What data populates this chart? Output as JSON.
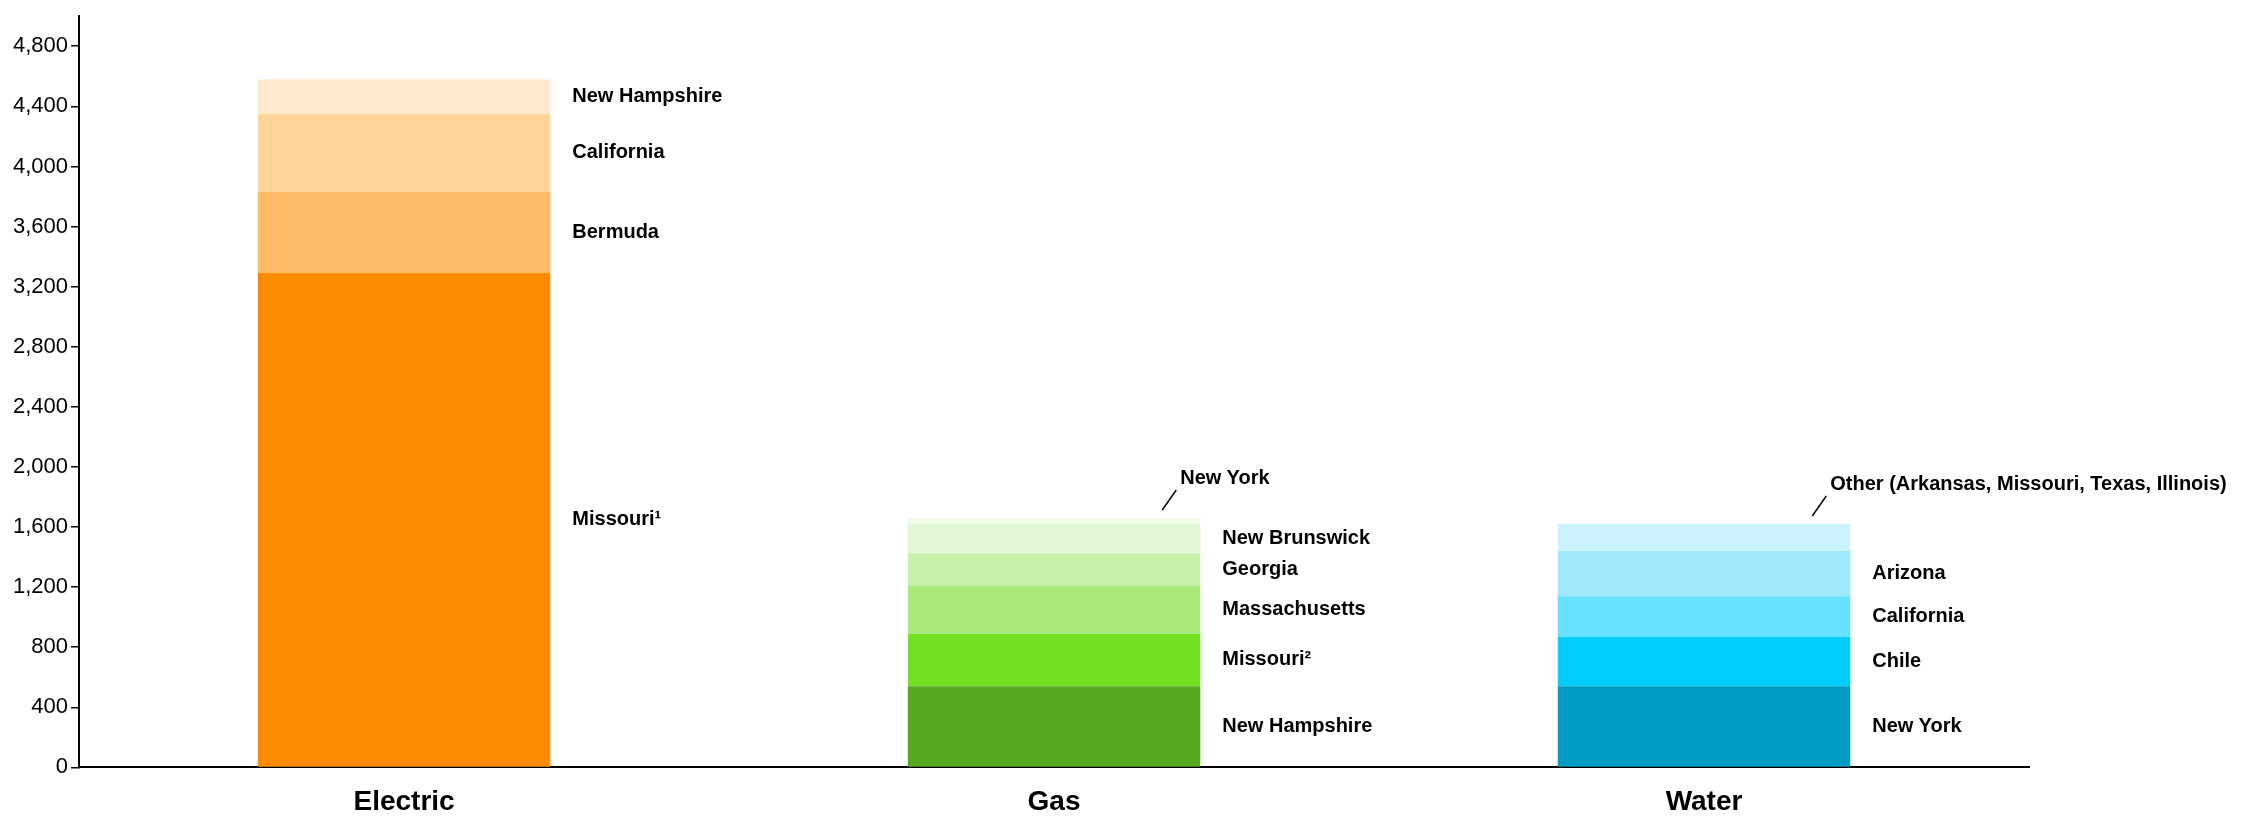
{
  "chart_data": {
    "type": "bar",
    "stacked": true,
    "legend": false,
    "categories": [
      "Electric",
      "Gas",
      "Water"
    ],
    "series": [
      {
        "name": "Missouri¹",
        "color": "#ff8c00",
        "values": [
          3290,
          null,
          null
        ]
      },
      {
        "name": "Bermuda",
        "color": "#ffbb66",
        "values": [
          540,
          null,
          null
        ]
      },
      {
        "name": "California",
        "color": "#ffd49a",
        "values": [
          520,
          null,
          null
        ]
      },
      {
        "name": "New Hampshire",
        "color": "#fee8cc",
        "values": [
          230,
          null,
          null
        ]
      },
      {
        "name": "New Hampshire",
        "color": "#56a81c",
        "values": [
          null,
          540,
          null
        ]
      },
      {
        "name": "Missouri²",
        "color": "#70e020",
        "values": [
          null,
          350,
          null
        ]
      },
      {
        "name": "Massachusetts",
        "color": "#a8ea7c",
        "values": [
          null,
          320,
          null
        ]
      },
      {
        "name": "Georgia",
        "color": "#c8f0aa",
        "values": [
          null,
          215,
          null
        ]
      },
      {
        "name": "New Brunswick",
        "color": "#e2f7d6",
        "values": [
          null,
          195,
          null
        ]
      },
      {
        "name": "New York",
        "color": "#f0fbea",
        "values": [
          null,
          40,
          null
        ]
      },
      {
        "name": "New York",
        "color": "#009cc4",
        "values": [
          null,
          null,
          540
        ]
      },
      {
        "name": "Chile",
        "color": "#00ccff",
        "values": [
          null,
          null,
          330
        ]
      },
      {
        "name": "California",
        "color": "#66e0ff",
        "values": [
          null,
          null,
          270
        ]
      },
      {
        "name": "Arizona",
        "color": "#9eeafc",
        "values": [
          null,
          null,
          300
        ]
      },
      {
        "name": "Other (Arkansas, Missouri, Texas, Illinois)",
        "color": "#ccf3fd",
        "values": [
          null,
          null,
          180
        ]
      }
    ],
    "ylim": [
      0,
      5000
    ],
    "yticks": [
      0,
      400,
      800,
      {
        "value": 1200,
        "label": "1,200"
      },
      {
        "value": 1600,
        "label": "1,600"
      },
      {
        "value": 2000,
        "label": "2,000"
      },
      {
        "value": 2400,
        "label": "2,400"
      },
      {
        "value": 2800,
        "label": "2,800"
      },
      {
        "value": 3200,
        "label": "3,200"
      },
      {
        "value": 3600,
        "label": "3,600"
      },
      {
        "value": 4000,
        "label": "4,000"
      },
      {
        "value": 4400,
        "label": "4,400"
      },
      {
        "value": 4800,
        "label": "4,800"
      }
    ]
  }
}
